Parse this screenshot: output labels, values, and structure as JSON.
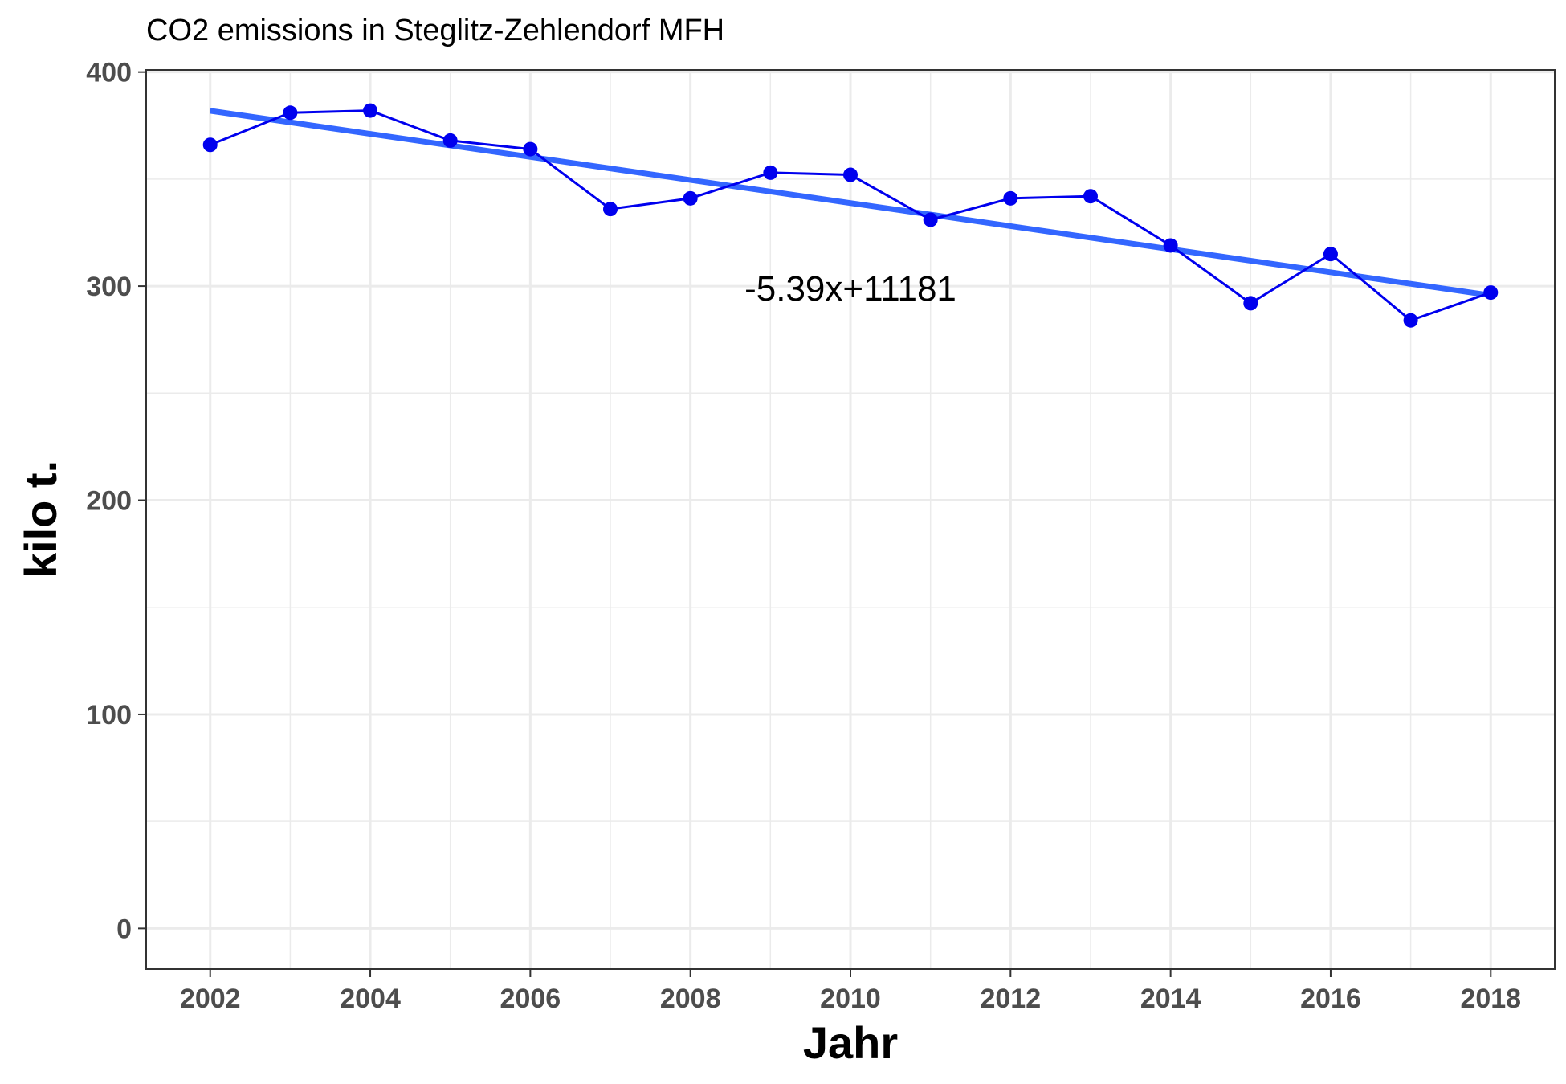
{
  "chart_data": {
    "type": "line",
    "title": "CO2 emissions in Steglitz-Zehlendorf MFH",
    "xlabel": "Jahr",
    "ylabel": "kilo t.",
    "xlim": [
      2001.2,
      2018.8
    ],
    "ylim": [
      -19,
      401
    ],
    "x_ticks": [
      2002,
      2004,
      2006,
      2008,
      2010,
      2012,
      2014,
      2016,
      2018
    ],
    "y_ticks": [
      0,
      100,
      200,
      300,
      400
    ],
    "grid": true,
    "legend": "none",
    "series": [
      {
        "x": [
          2002,
          2003,
          2004,
          2005,
          2006,
          2007,
          2008,
          2009,
          2010,
          2011,
          2012,
          2013,
          2014,
          2015,
          2016,
          2017,
          2018
        ],
        "values": [
          366,
          381,
          382,
          368,
          364,
          336,
          341,
          353,
          352,
          331,
          341,
          342,
          319,
          292,
          315,
          284,
          297
        ],
        "color": "#0000ee"
      }
    ],
    "trend_line": {
      "x": [
        2002,
        2018
      ],
      "values": [
        381.9,
        295.7
      ],
      "color": "#3366ff"
    },
    "annotation": {
      "text": "-5.39x+11181",
      "x": 2010,
      "y": 299
    }
  }
}
